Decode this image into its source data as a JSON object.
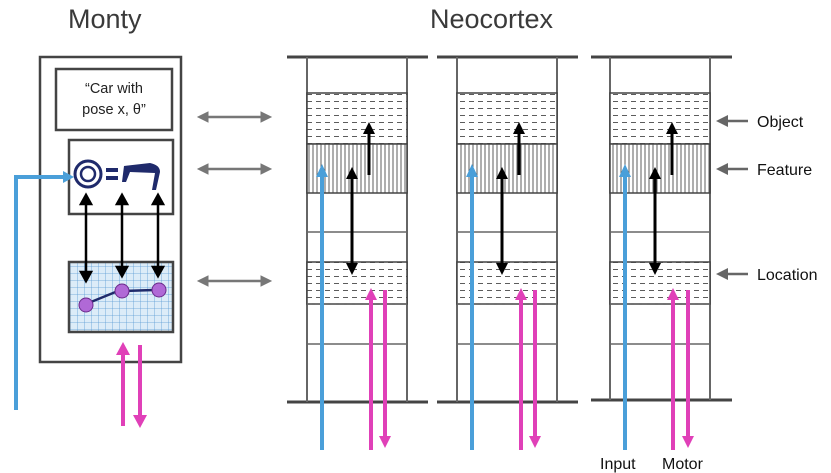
{
  "titles": {
    "left": "Monty",
    "right": "Neocortex"
  },
  "monty": {
    "object_box_line1": "“Car with",
    "object_box_line2": "pose x, θ”"
  },
  "layer_labels": {
    "object": "Object",
    "feature": "Feature",
    "location": "Location"
  },
  "bottom_labels": {
    "input": "Input",
    "motor": "Motor"
  },
  "colors": {
    "input_arrow": "#4a9fd9",
    "motor_arrow": "#e040b8",
    "grid": "#5b9bd5",
    "grid_bg": "#dcecf8",
    "node": "#b069d6",
    "node_link": "#1f2a6b",
    "frame": "#444444",
    "connector": "#777777"
  },
  "icons": [
    "wheel-icon",
    "car-part-icon",
    "location-grid-icon"
  ]
}
